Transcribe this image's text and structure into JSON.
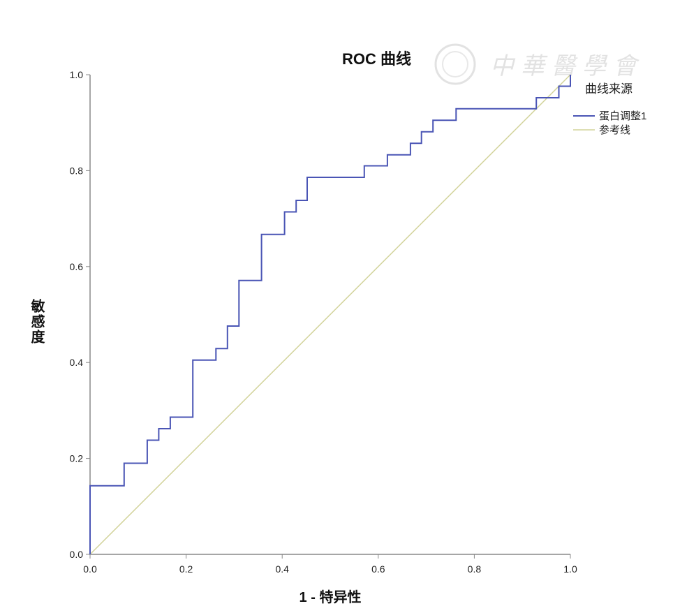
{
  "chart_data": {
    "type": "line",
    "title": "ROC 曲线",
    "xlabel": "1 - 特异性",
    "ylabel": "敏感度",
    "xlim": [
      0,
      1
    ],
    "ylim": [
      0,
      1
    ],
    "xticks": [
      "0.0",
      "0.2",
      "0.4",
      "0.6",
      "0.8",
      "1.0"
    ],
    "yticks": [
      "0.0",
      "0.2",
      "0.4",
      "0.6",
      "0.8",
      "1.0"
    ],
    "grid": false,
    "legend_title": "曲线来源",
    "legend_position": "top-right",
    "series": [
      {
        "name": "蛋白调整1",
        "color": "#4a55b5",
        "step": true,
        "points": [
          [
            0,
            0
          ],
          [
            0,
            0.143
          ],
          [
            0.071,
            0.143
          ],
          [
            0.071,
            0.19
          ],
          [
            0.119,
            0.19
          ],
          [
            0.119,
            0.238
          ],
          [
            0.143,
            0.238
          ],
          [
            0.143,
            0.262
          ],
          [
            0.167,
            0.262
          ],
          [
            0.167,
            0.286
          ],
          [
            0.214,
            0.286
          ],
          [
            0.214,
            0.405
          ],
          [
            0.262,
            0.405
          ],
          [
            0.262,
            0.429
          ],
          [
            0.286,
            0.429
          ],
          [
            0.286,
            0.476
          ],
          [
            0.31,
            0.476
          ],
          [
            0.31,
            0.571
          ],
          [
            0.357,
            0.571
          ],
          [
            0.357,
            0.667
          ],
          [
            0.405,
            0.667
          ],
          [
            0.405,
            0.714
          ],
          [
            0.429,
            0.714
          ],
          [
            0.429,
            0.738
          ],
          [
            0.452,
            0.738
          ],
          [
            0.452,
            0.786
          ],
          [
            0.571,
            0.786
          ],
          [
            0.571,
            0.81
          ],
          [
            0.619,
            0.81
          ],
          [
            0.619,
            0.833
          ],
          [
            0.667,
            0.833
          ],
          [
            0.667,
            0.857
          ],
          [
            0.69,
            0.857
          ],
          [
            0.69,
            0.881
          ],
          [
            0.714,
            0.881
          ],
          [
            0.714,
            0.905
          ],
          [
            0.762,
            0.905
          ],
          [
            0.762,
            0.929
          ],
          [
            0.929,
            0.929
          ],
          [
            0.929,
            0.952
          ],
          [
            0.976,
            0.952
          ],
          [
            0.976,
            0.976
          ],
          [
            1,
            0.976
          ],
          [
            1,
            1
          ]
        ]
      },
      {
        "name": "参考线",
        "color": "#d2d39a",
        "step": false,
        "points": [
          [
            0,
            0
          ],
          [
            1,
            1
          ]
        ]
      }
    ]
  },
  "watermark": "中華醫學會"
}
